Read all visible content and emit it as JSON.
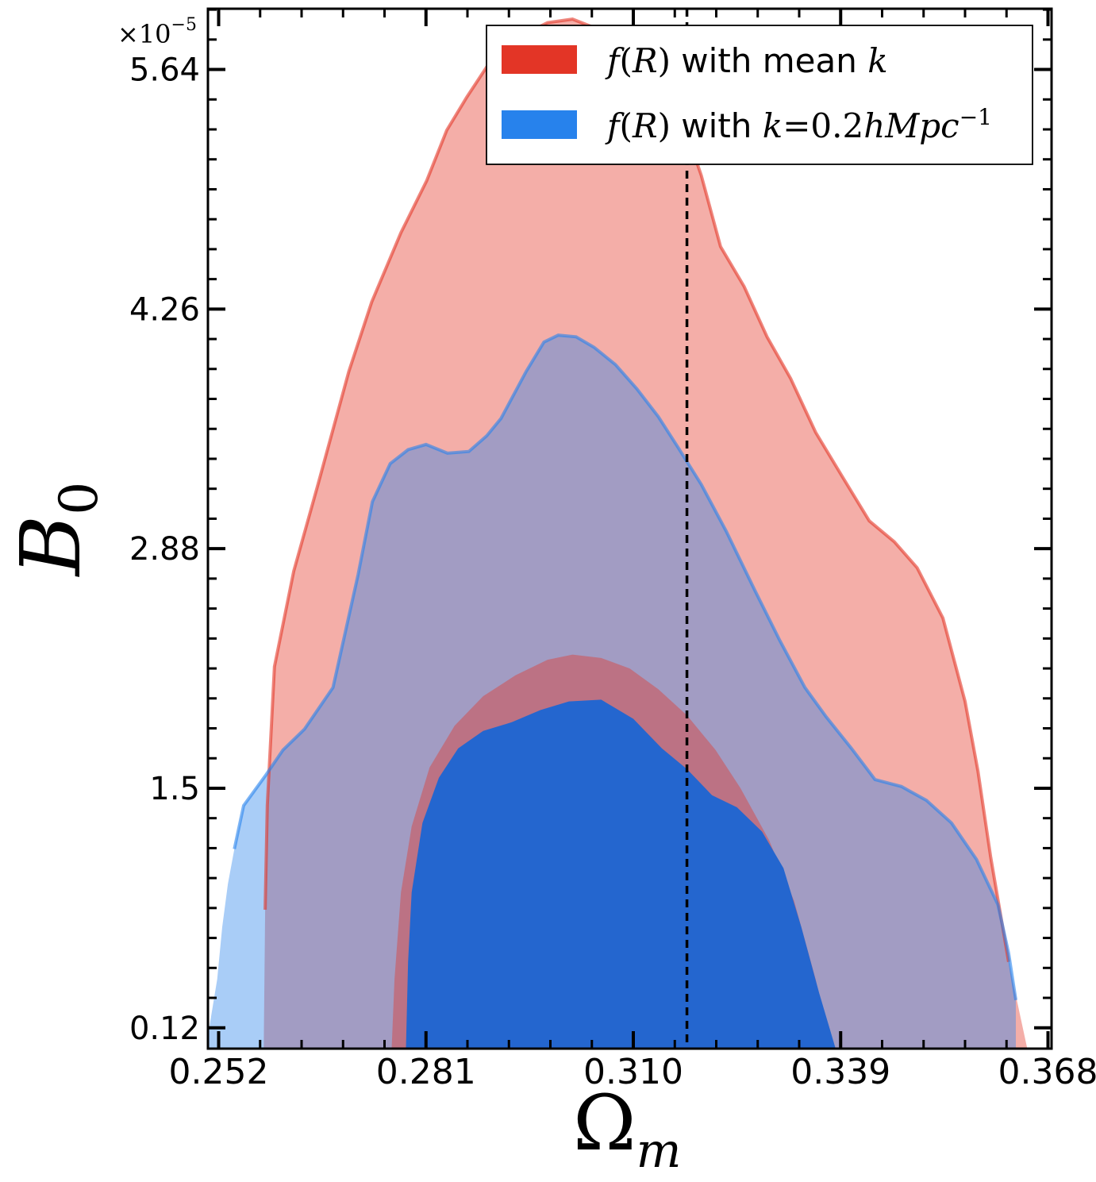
{
  "chart_data": {
    "type": "area",
    "title": "",
    "xlabel": "Ω",
    "xlabel_sub": "m",
    "ylabel": "B",
    "ylabel_sub": "0",
    "y_multiplier": "×10",
    "y_multiplier_exp": "−5",
    "xlim": [
      0.2505,
      0.3685
    ],
    "ylim": [
      0.0,
      5.99
    ],
    "x_ticks": [
      0.252,
      0.281,
      0.31,
      0.339,
      0.368
    ],
    "x_tick_labels": [
      "0.252",
      "0.281",
      "0.310",
      "0.339",
      "0.368"
    ],
    "y_ticks": [
      0.12,
      1.5,
      2.88,
      4.26,
      5.64
    ],
    "y_tick_labels": [
      "0.12",
      "1.5",
      "2.88",
      "4.26",
      "5.64"
    ],
    "reference_line_x": 0.3175,
    "legend_position": "top-right",
    "legend": [
      {
        "color": "#e33526",
        "text_parts": [
          {
            "t": "f",
            "m": true
          },
          {
            "t": "(",
            "m": false
          },
          {
            "t": "R",
            "m": true
          },
          {
            "t": ")",
            "m": false
          },
          {
            "t": " with mean ",
            "m": false
          },
          {
            "t": "k",
            "m": true
          }
        ]
      },
      {
        "color": "#2782ec",
        "text_parts": [
          {
            "t": "f",
            "m": true
          },
          {
            "t": "(",
            "m": false
          },
          {
            "t": "R",
            "m": true
          },
          {
            "t": ")",
            "m": false
          },
          {
            "t": " with ",
            "m": false
          },
          {
            "t": "k",
            "m": true
          },
          {
            "t": "=0.2",
            "m": false
          },
          {
            "t": "hMpc",
            "m": true
          },
          {
            "t": "−1",
            "m": false,
            "sup": true
          }
        ]
      }
    ],
    "series": [
      {
        "name": "f(R) with mean k",
        "color": "#e33526",
        "outer_contour": [
          [
            0.2583,
            0.0
          ],
          [
            0.2585,
            0.8
          ],
          [
            0.2588,
            1.4
          ],
          [
            0.2598,
            2.2
          ],
          [
            0.2625,
            2.75
          ],
          [
            0.2659,
            3.25
          ],
          [
            0.2702,
            3.9
          ],
          [
            0.2734,
            4.3
          ],
          [
            0.2775,
            4.7
          ],
          [
            0.2811,
            5.0
          ],
          [
            0.2839,
            5.29
          ],
          [
            0.2867,
            5.48
          ],
          [
            0.2899,
            5.68
          ],
          [
            0.2936,
            5.82
          ],
          [
            0.298,
            5.91
          ],
          [
            0.3015,
            5.93
          ],
          [
            0.3052,
            5.87
          ],
          [
            0.309,
            5.76
          ],
          [
            0.3125,
            5.62
          ],
          [
            0.315,
            5.51
          ],
          [
            0.317,
            5.33
          ],
          [
            0.3195,
            5.03
          ],
          [
            0.3222,
            4.62
          ],
          [
            0.3255,
            4.39
          ],
          [
            0.3287,
            4.1
          ],
          [
            0.332,
            3.86
          ],
          [
            0.3355,
            3.55
          ],
          [
            0.3393,
            3.29
          ],
          [
            0.343,
            3.04
          ],
          [
            0.3465,
            2.92
          ],
          [
            0.3497,
            2.77
          ],
          [
            0.3533,
            2.48
          ],
          [
            0.3564,
            2.0
          ],
          [
            0.3582,
            1.6
          ],
          [
            0.36,
            1.1
          ],
          [
            0.3625,
            0.5
          ],
          [
            0.3651,
            0.0
          ]
        ],
        "inner_contour": [
          [
            0.2762,
            0.0
          ],
          [
            0.2766,
            0.4
          ],
          [
            0.2775,
            0.9
          ],
          [
            0.279,
            1.28
          ],
          [
            0.2815,
            1.62
          ],
          [
            0.285,
            1.86
          ],
          [
            0.289,
            2.03
          ],
          [
            0.2935,
            2.15
          ],
          [
            0.298,
            2.24
          ],
          [
            0.3015,
            2.27
          ],
          [
            0.3055,
            2.25
          ],
          [
            0.3095,
            2.19
          ],
          [
            0.3135,
            2.07
          ],
          [
            0.3175,
            1.92
          ],
          [
            0.3215,
            1.72
          ],
          [
            0.325,
            1.5
          ],
          [
            0.329,
            1.2
          ],
          [
            0.3325,
            0.85
          ],
          [
            0.3355,
            0.4
          ],
          [
            0.3375,
            0.0
          ]
        ]
      },
      {
        "name": "f(R) with k=0.2hMpc^-1",
        "color": "#2782ec",
        "outer_contour": [
          [
            0.2502,
            0.0
          ],
          [
            0.2518,
            0.4
          ],
          [
            0.2525,
            0.7
          ],
          [
            0.2533,
            0.95
          ],
          [
            0.2542,
            1.15
          ],
          [
            0.2555,
            1.4
          ],
          [
            0.2585,
            1.57
          ],
          [
            0.261,
            1.72
          ],
          [
            0.264,
            1.84
          ],
          [
            0.268,
            2.08
          ],
          [
            0.2715,
            2.73
          ],
          [
            0.2735,
            3.15
          ],
          [
            0.276,
            3.37
          ],
          [
            0.2785,
            3.45
          ],
          [
            0.281,
            3.48
          ],
          [
            0.284,
            3.43
          ],
          [
            0.287,
            3.44
          ],
          [
            0.2895,
            3.53
          ],
          [
            0.2915,
            3.63
          ],
          [
            0.295,
            3.9
          ],
          [
            0.2975,
            4.07
          ],
          [
            0.2995,
            4.11
          ],
          [
            0.302,
            4.1
          ],
          [
            0.3045,
            4.04
          ],
          [
            0.3075,
            3.94
          ],
          [
            0.3105,
            3.8
          ],
          [
            0.3135,
            3.64
          ],
          [
            0.3163,
            3.46
          ],
          [
            0.3195,
            3.25
          ],
          [
            0.323,
            2.98
          ],
          [
            0.327,
            2.64
          ],
          [
            0.3305,
            2.35
          ],
          [
            0.334,
            2.08
          ],
          [
            0.337,
            1.91
          ],
          [
            0.3405,
            1.73
          ],
          [
            0.3438,
            1.55
          ],
          [
            0.3475,
            1.51
          ],
          [
            0.351,
            1.43
          ],
          [
            0.3545,
            1.3
          ],
          [
            0.358,
            1.09
          ],
          [
            0.361,
            0.83
          ],
          [
            0.3625,
            0.55
          ],
          [
            0.3635,
            0.28
          ],
          [
            0.3635,
            0.0
          ]
        ],
        "inner_contour": [
          [
            0.2782,
            0.0
          ],
          [
            0.2785,
            0.5
          ],
          [
            0.279,
            0.9
          ],
          [
            0.2805,
            1.3
          ],
          [
            0.2828,
            1.56
          ],
          [
            0.2855,
            1.73
          ],
          [
            0.289,
            1.83
          ],
          [
            0.293,
            1.88
          ],
          [
            0.297,
            1.95
          ],
          [
            0.301,
            2.0
          ],
          [
            0.3055,
            2.01
          ],
          [
            0.31,
            1.9
          ],
          [
            0.314,
            1.73
          ],
          [
            0.3175,
            1.61
          ],
          [
            0.321,
            1.46
          ],
          [
            0.3245,
            1.39
          ],
          [
            0.328,
            1.25
          ],
          [
            0.331,
            1.04
          ],
          [
            0.3335,
            0.7
          ],
          [
            0.336,
            0.32
          ],
          [
            0.3383,
            0.0
          ]
        ]
      }
    ]
  }
}
